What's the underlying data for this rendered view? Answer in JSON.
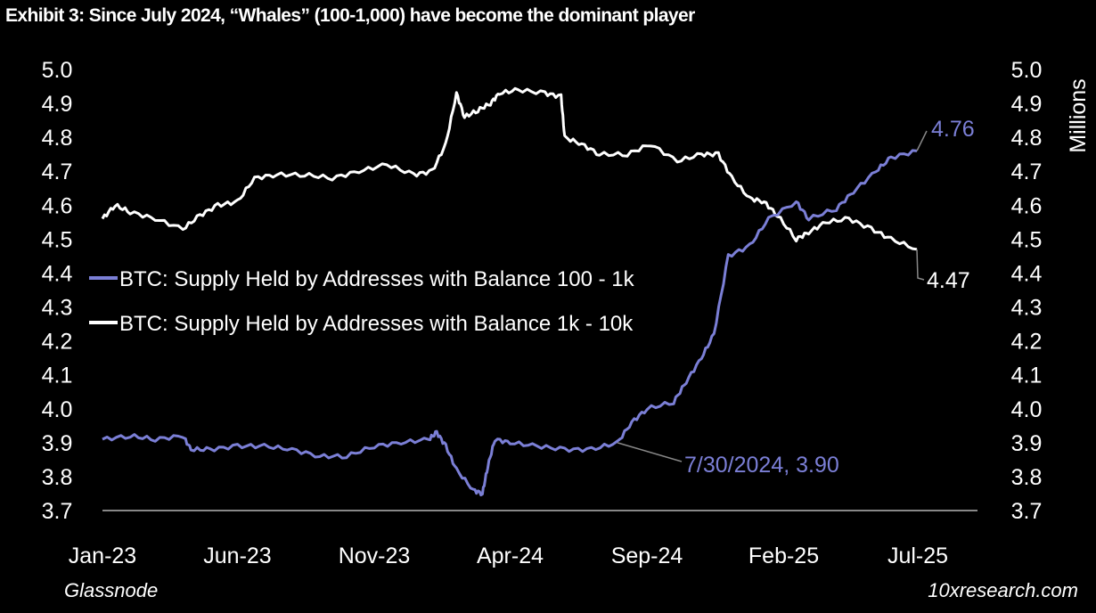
{
  "title": "Exhibit 3: Since July 2024, “Whales” (100-1,000) have become the dominant player",
  "source_left": "Glassnode",
  "source_right": "10xresearch.com",
  "chart_data": {
    "type": "line",
    "title": "Exhibit 3: Since July 2024, “Whales” (100-1,000) have become the dominant player",
    "ylabel_right": "Millions",
    "ylim": [
      3.7,
      5.0
    ],
    "y_ticks": [
      "5.0",
      "4.9",
      "4.8",
      "4.7",
      "4.6",
      "4.5",
      "4.4",
      "4.3",
      "4.2",
      "4.1",
      "4.0",
      "3.9",
      "3.8",
      "3.7"
    ],
    "x_ticks": [
      {
        "date": "2023-01-01",
        "label": "Jan-23"
      },
      {
        "date": "2023-06-01",
        "label": "Jun-23"
      },
      {
        "date": "2023-11-01",
        "label": "Nov-23"
      },
      {
        "date": "2024-04-01",
        "label": "Apr-24"
      },
      {
        "date": "2024-09-01",
        "label": "Sep-24"
      },
      {
        "date": "2025-02-01",
        "label": "Feb-25"
      },
      {
        "date": "2025-07-01",
        "label": "Jul-25"
      }
    ],
    "xlim": [
      "2023-01-01",
      "2025-07-01"
    ],
    "grid": false,
    "legend_position": "center-left",
    "series": [
      {
        "name": "BTC: Supply Held by Addresses with Balance 100 - 1k",
        "color": "#7b7fd6",
        "points": [
          [
            "2023-01-01",
            3.91
          ],
          [
            "2023-02-01",
            3.92
          ],
          [
            "2023-03-01",
            3.91
          ],
          [
            "2023-04-01",
            3.92
          ],
          [
            "2023-04-10",
            3.88
          ],
          [
            "2023-05-01",
            3.88
          ],
          [
            "2023-06-01",
            3.89
          ],
          [
            "2023-07-01",
            3.89
          ],
          [
            "2023-08-01",
            3.88
          ],
          [
            "2023-09-01",
            3.86
          ],
          [
            "2023-10-01",
            3.86
          ],
          [
            "2023-11-01",
            3.89
          ],
          [
            "2023-12-01",
            3.9
          ],
          [
            "2024-01-01",
            3.91
          ],
          [
            "2024-01-10",
            3.93
          ],
          [
            "2024-01-20",
            3.89
          ],
          [
            "2024-02-01",
            3.82
          ],
          [
            "2024-02-20",
            3.76
          ],
          [
            "2024-03-01",
            3.75
          ],
          [
            "2024-03-07",
            3.83
          ],
          [
            "2024-03-15",
            3.91
          ],
          [
            "2024-04-01",
            3.9
          ],
          [
            "2024-05-01",
            3.89
          ],
          [
            "2024-06-01",
            3.88
          ],
          [
            "2024-07-01",
            3.88
          ],
          [
            "2024-07-30",
            3.9
          ],
          [
            "2024-08-15",
            3.96
          ],
          [
            "2024-09-01",
            4.0
          ],
          [
            "2024-10-01",
            4.02
          ],
          [
            "2024-10-15",
            4.08
          ],
          [
            "2024-11-01",
            4.15
          ],
          [
            "2024-11-15",
            4.22
          ],
          [
            "2024-12-01",
            4.45
          ],
          [
            "2024-12-25",
            4.48
          ],
          [
            "2025-01-15",
            4.56
          ],
          [
            "2025-02-15",
            4.61
          ],
          [
            "2025-03-01",
            4.56
          ],
          [
            "2025-04-01",
            4.59
          ],
          [
            "2025-04-20",
            4.64
          ],
          [
            "2025-05-15",
            4.7
          ],
          [
            "2025-06-01",
            4.74
          ],
          [
            "2025-06-30",
            4.76
          ]
        ]
      },
      {
        "name": "BTC: Supply Held by Addresses with Balance 1k - 10k",
        "color": "#ffffff",
        "points": [
          [
            "2023-01-01",
            4.56
          ],
          [
            "2023-01-15",
            4.6
          ],
          [
            "2023-02-01",
            4.58
          ],
          [
            "2023-03-01",
            4.56
          ],
          [
            "2023-04-01",
            4.53
          ],
          [
            "2023-04-20",
            4.57
          ],
          [
            "2023-05-10",
            4.6
          ],
          [
            "2023-06-01",
            4.61
          ],
          [
            "2023-06-20",
            4.68
          ],
          [
            "2023-07-15",
            4.69
          ],
          [
            "2023-08-15",
            4.69
          ],
          [
            "2023-09-15",
            4.68
          ],
          [
            "2023-10-15",
            4.7
          ],
          [
            "2023-11-15",
            4.72
          ],
          [
            "2023-12-15",
            4.69
          ],
          [
            "2024-01-05",
            4.7
          ],
          [
            "2024-01-20",
            4.78
          ],
          [
            "2024-02-01",
            4.93
          ],
          [
            "2024-02-10",
            4.86
          ],
          [
            "2024-02-25",
            4.88
          ],
          [
            "2024-03-10",
            4.9
          ],
          [
            "2024-03-20",
            4.93
          ],
          [
            "2024-04-10",
            4.94
          ],
          [
            "2024-05-10",
            4.93
          ],
          [
            "2024-05-28",
            4.92
          ],
          [
            "2024-06-01",
            4.8
          ],
          [
            "2024-06-20",
            4.78
          ],
          [
            "2024-07-10",
            4.75
          ],
          [
            "2024-08-10",
            4.75
          ],
          [
            "2024-09-05",
            4.78
          ],
          [
            "2024-10-05",
            4.73
          ],
          [
            "2024-11-01",
            4.75
          ],
          [
            "2024-11-20",
            4.75
          ],
          [
            "2024-12-05",
            4.68
          ],
          [
            "2024-12-25",
            4.62
          ],
          [
            "2025-01-10",
            4.61
          ],
          [
            "2025-01-25",
            4.57
          ],
          [
            "2025-02-15",
            4.5
          ],
          [
            "2025-03-01",
            4.52
          ],
          [
            "2025-03-20",
            4.55
          ],
          [
            "2025-04-15",
            4.56
          ],
          [
            "2025-05-10",
            4.53
          ],
          [
            "2025-06-01",
            4.5
          ],
          [
            "2025-06-30",
            4.47
          ]
        ]
      }
    ],
    "annotations": [
      {
        "text": "4.76",
        "date": "2025-06-30",
        "value": 4.76,
        "color": "#7b7fd6"
      },
      {
        "text": "4.47",
        "date": "2025-06-30",
        "value": 4.47,
        "color": "#ffffff"
      },
      {
        "text": "7/30/2024, 3.90",
        "date": "2024-07-30",
        "value": 3.9,
        "color": "#7b7fd6"
      }
    ]
  }
}
